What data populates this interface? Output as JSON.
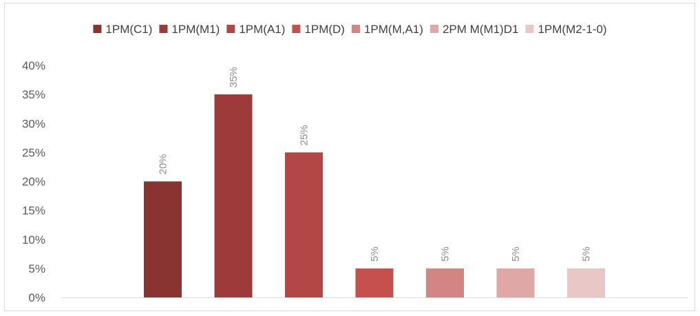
{
  "chart_data": {
    "type": "bar",
    "title": "",
    "xlabel": "",
    "ylabel": "",
    "categories": [
      "1PM(C1)",
      "1PM(M1)",
      "1PM(A1)",
      "1PM(D)",
      "1PM(M,A1)",
      "2PM M(M1)D1",
      "1PM(M2-1-0)"
    ],
    "values": [
      20,
      35,
      25,
      5,
      5,
      5,
      5
    ],
    "data_labels": [
      "20%",
      "35%",
      "25%",
      "5%",
      "5%",
      "5%",
      "5%"
    ],
    "colors": [
      "#8a3432",
      "#9e3b3a",
      "#b24745",
      "#c5504d",
      "#d38583",
      "#dfa8a7",
      "#e8c7c6"
    ],
    "ylim": [
      0,
      40
    ],
    "yticks": [
      0,
      5,
      10,
      15,
      20,
      25,
      30,
      35,
      40
    ],
    "ytick_labels": [
      "0%",
      "5%",
      "10%",
      "15%",
      "20%",
      "25%",
      "30%",
      "35%",
      "40%"
    ],
    "legend_position": "top",
    "grid": false
  }
}
